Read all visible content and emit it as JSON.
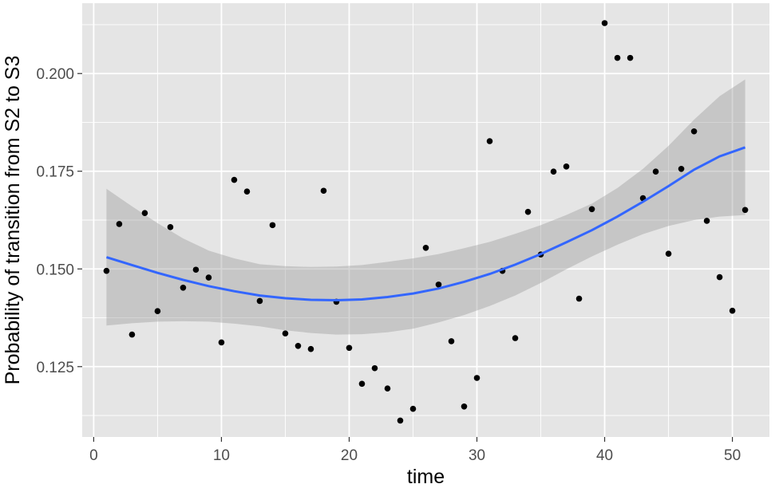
{
  "chart_data": {
    "type": "scatter",
    "xlabel": "time",
    "ylabel": "Probability of transition from S2 to S3",
    "xlim": [
      -0.9,
      52.9
    ],
    "ylim": [
      0.107,
      0.218
    ],
    "xticks": [
      0,
      10,
      20,
      30,
      40,
      50
    ],
    "xtick_labels": [
      "0",
      "10",
      "20",
      "30",
      "40",
      "50"
    ],
    "yticks": [
      0.125,
      0.15,
      0.175,
      0.2
    ],
    "ytick_labels": [
      "0.125",
      "0.150",
      "0.175",
      "0.200"
    ],
    "grid": true,
    "colors": {
      "panel": "#e5e5e5",
      "grid": "#ffffff",
      "points": "#000000",
      "smooth_line": "#3366ff",
      "confidence_band": "#999999"
    },
    "points": {
      "x": [
        1,
        2,
        3,
        4,
        5,
        6,
        7,
        8,
        9,
        10,
        11,
        12,
        13,
        14,
        15,
        16,
        17,
        18,
        19,
        20,
        21,
        22,
        23,
        24,
        25,
        26,
        27,
        28,
        29,
        30,
        31,
        32,
        33,
        34,
        35,
        36,
        37,
        38,
        39,
        40,
        41,
        42,
        43,
        44,
        45,
        46,
        47,
        48,
        49,
        50,
        51
      ],
      "y": [
        0.1495,
        0.1615,
        0.1332,
        0.1643,
        0.1392,
        0.1607,
        0.1452,
        0.1498,
        0.1478,
        0.1312,
        0.1728,
        0.1698,
        0.1418,
        0.1612,
        0.1335,
        0.1303,
        0.1295,
        0.17,
        0.1416,
        0.1298,
        0.1206,
        0.1246,
        0.1194,
        0.1112,
        0.1142,
        0.1554,
        0.146,
        0.1315,
        0.1148,
        0.1221,
        0.1827,
        0.1495,
        0.1323,
        0.1646,
        0.1537,
        0.1749,
        0.1762,
        0.1424,
        0.1653,
        0.2129,
        0.204,
        0.204,
        0.1681,
        0.1749,
        0.1539,
        0.1756,
        0.1852,
        0.1623,
        0.1479,
        0.1393,
        0.1651
      ]
    },
    "smooth": {
      "method": "loess",
      "x": [
        1,
        3,
        5,
        7,
        9,
        11,
        13,
        15,
        17,
        19,
        21,
        23,
        25,
        27,
        29,
        31,
        33,
        35,
        37,
        39,
        41,
        43,
        45,
        47,
        49,
        51
      ],
      "fit": [
        0.153,
        0.151,
        0.149,
        0.1472,
        0.1456,
        0.1443,
        0.1432,
        0.1425,
        0.1421,
        0.142,
        0.1422,
        0.1428,
        0.1437,
        0.145,
        0.1467,
        0.1487,
        0.1511,
        0.1538,
        0.1568,
        0.1599,
        0.1634,
        0.1672,
        0.1712,
        0.1754,
        0.1788,
        0.1811
      ],
      "lower": [
        0.1355,
        0.1361,
        0.1365,
        0.1366,
        0.1365,
        0.136,
        0.1353,
        0.1343,
        0.1336,
        0.1332,
        0.1333,
        0.1338,
        0.1347,
        0.1363,
        0.1382,
        0.1405,
        0.1432,
        0.1464,
        0.1499,
        0.1532,
        0.1562,
        0.1589,
        0.161,
        0.1625,
        0.1634,
        0.1638
      ],
      "upper": [
        0.1705,
        0.166,
        0.1617,
        0.1578,
        0.1547,
        0.1527,
        0.1512,
        0.1507,
        0.1505,
        0.1506,
        0.151,
        0.1518,
        0.1527,
        0.1538,
        0.1553,
        0.1569,
        0.159,
        0.1612,
        0.1638,
        0.1667,
        0.1707,
        0.1756,
        0.1815,
        0.1882,
        0.1942,
        0.1985
      ]
    }
  }
}
